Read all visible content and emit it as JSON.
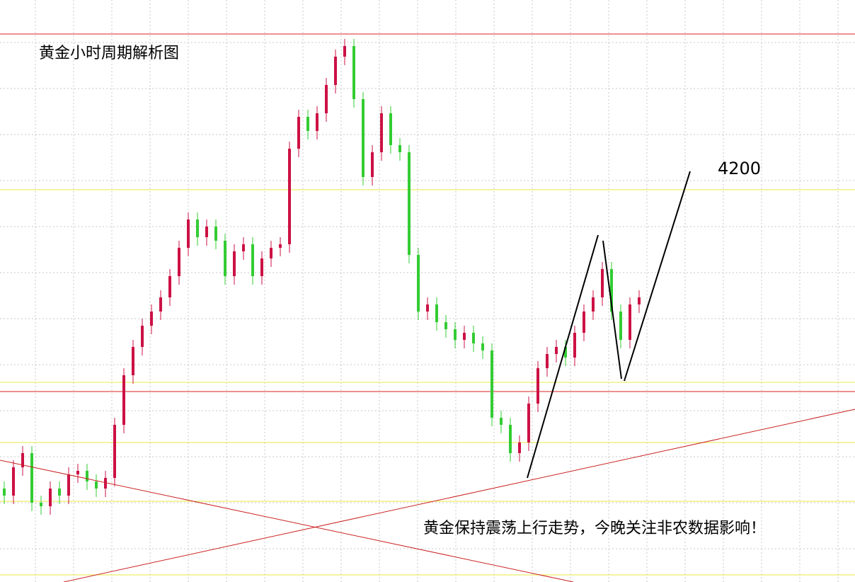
{
  "chart_data": {
    "type": "candlestick",
    "title": "黄金小时周期解析图",
    "annotations": [
      "4200",
      "黄金保持震荡上行走势，今晚关注非农数据影响！"
    ],
    "ylim": [
      0,
      822
    ],
    "up_color": "#cc1144",
    "down_color": "#33cc33",
    "categories": [
      null,
      null,
      null,
      null,
      null,
      null,
      null,
      null,
      null,
      null,
      null,
      null,
      null,
      null,
      null,
      null,
      null,
      null,
      null,
      null,
      null,
      null,
      null,
      null,
      null,
      null,
      null,
      null,
      null,
      null,
      null,
      null,
      null,
      null,
      null,
      null,
      null,
      null,
      null,
      null,
      null,
      null,
      null,
      null,
      null,
      null,
      null,
      null,
      null,
      null,
      null,
      null,
      null,
      null,
      null,
      null,
      null,
      null,
      null,
      null,
      null,
      null,
      null,
      null,
      null,
      null,
      null,
      null,
      null,
      null
    ],
    "open": [
      132,
      122,
      162,
      182,
      112,
      107,
      132,
      122,
      152,
      157,
      142,
      132,
      147,
      222,
      292,
      332,
      362,
      382,
      402,
      432,
      472,
      512,
      487,
      502,
      482,
      432,
      467,
      477,
      432,
      457,
      472,
      477,
      612,
      657,
      637,
      662,
      702,
      742,
      757,
      682,
      572,
      607,
      662,
      617,
      607,
      462,
      382,
      392,
      367,
      357,
      342,
      352,
      337,
      327,
      232,
      222,
      182,
      197,
      252,
      302,
      322,
      332,
      317,
      352,
      382,
      402,
      442,
      382,
      342,
      392
    ],
    "high": [
      142,
      172,
      192,
      192,
      122,
      142,
      142,
      162,
      167,
      167,
      152,
      157,
      232,
      302,
      342,
      372,
      392,
      412,
      442,
      482,
      522,
      522,
      512,
      512,
      492,
      477,
      487,
      487,
      467,
      482,
      487,
      622,
      667,
      667,
      672,
      712,
      752,
      767,
      767,
      692,
      617,
      672,
      672,
      627,
      617,
      472,
      402,
      402,
      377,
      367,
      362,
      362,
      347,
      337,
      242,
      232,
      207,
      262,
      312,
      332,
      342,
      342,
      362,
      392,
      412,
      452,
      452,
      392,
      402,
      412
    ],
    "low": [
      110,
      110,
      150,
      100,
      95,
      95,
      110,
      110,
      140,
      130,
      120,
      120,
      135,
      210,
      280,
      320,
      350,
      370,
      390,
      420,
      460,
      475,
      475,
      470,
      420,
      420,
      455,
      420,
      420,
      445,
      460,
      465,
      600,
      625,
      625,
      650,
      690,
      730,
      670,
      560,
      560,
      595,
      605,
      595,
      450,
      370,
      370,
      355,
      345,
      330,
      330,
      325,
      315,
      220,
      210,
      170,
      170,
      185,
      240,
      290,
      310,
      305,
      305,
      340,
      370,
      390,
      370,
      330,
      330,
      380
    ],
    "close": [
      122,
      162,
      182,
      112,
      107,
      132,
      122,
      152,
      157,
      142,
      132,
      147,
      222,
      292,
      332,
      362,
      382,
      402,
      432,
      472,
      512,
      487,
      502,
      482,
      432,
      467,
      477,
      432,
      457,
      472,
      477,
      612,
      657,
      637,
      662,
      702,
      742,
      757,
      682,
      572,
      607,
      662,
      617,
      607,
      462,
      382,
      392,
      367,
      357,
      342,
      352,
      337,
      327,
      232,
      222,
      182,
      197,
      252,
      302,
      322,
      332,
      317,
      352,
      382,
      402,
      442,
      382,
      342,
      392,
      402
    ],
    "hlines": [
      {
        "value": 774,
        "color": "#dd2222"
      },
      {
        "value": 269,
        "color": "#dd2222"
      },
      {
        "value": 554,
        "color": "#e8e84a"
      },
      {
        "value": 282,
        "color": "#e8e84a"
      },
      {
        "value": 197,
        "color": "#e8e84a"
      },
      {
        "value": 114,
        "color": "#e8e84a"
      },
      {
        "value": 10,
        "color": "#e8e84a"
      }
    ]
  }
}
